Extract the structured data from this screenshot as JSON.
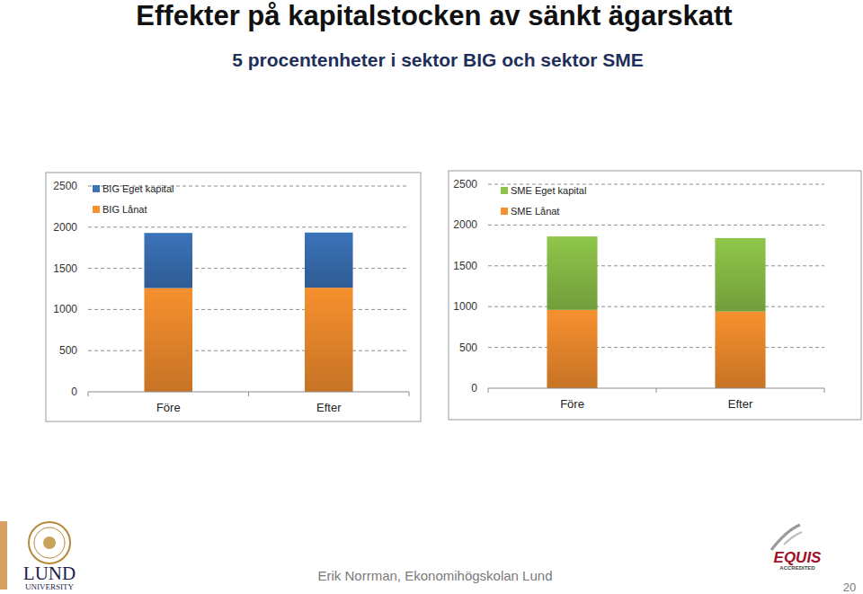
{
  "title": "Effekter på kapitalstocken av sänkt ägarskatt",
  "subtitle": "5 procentenheter i sektor BIG och sektor SME",
  "footer": "Erik Norrman, Ekonomihögskolan Lund",
  "page_number": "20",
  "logos": {
    "lund": [
      "LUND",
      "UNIVERSITY"
    ],
    "equis": [
      "EQUIS",
      "ACCREDITED"
    ]
  },
  "chart_data": [
    {
      "type": "bar",
      "stacked": true,
      "grid": true,
      "legend": "top-left",
      "categories": [
        "Före",
        "Efter"
      ],
      "series": [
        {
          "name": "BIG Lånat",
          "color": "#f7902e",
          "values": [
            1260,
            1265
          ]
        },
        {
          "name": "BIG Eget kapital",
          "color": "#3b73b9",
          "values": [
            670,
            670
          ]
        }
      ],
      "ylim": [
        0,
        2500
      ],
      "yticks": [
        0,
        500,
        1000,
        1500,
        2000,
        2500
      ]
    },
    {
      "type": "bar",
      "stacked": true,
      "grid": true,
      "legend": "top-left",
      "categories": [
        "Före",
        "Efter"
      ],
      "series": [
        {
          "name": "SME Lånat",
          "color": "#f7902e",
          "values": [
            960,
            940
          ]
        },
        {
          "name": "SME Eget kapital",
          "color": "#8fc64a",
          "values": [
            900,
            900
          ]
        }
      ],
      "ylim": [
        0,
        2500
      ],
      "yticks": [
        0,
        500,
        1000,
        1500,
        2000,
        2500
      ]
    }
  ]
}
